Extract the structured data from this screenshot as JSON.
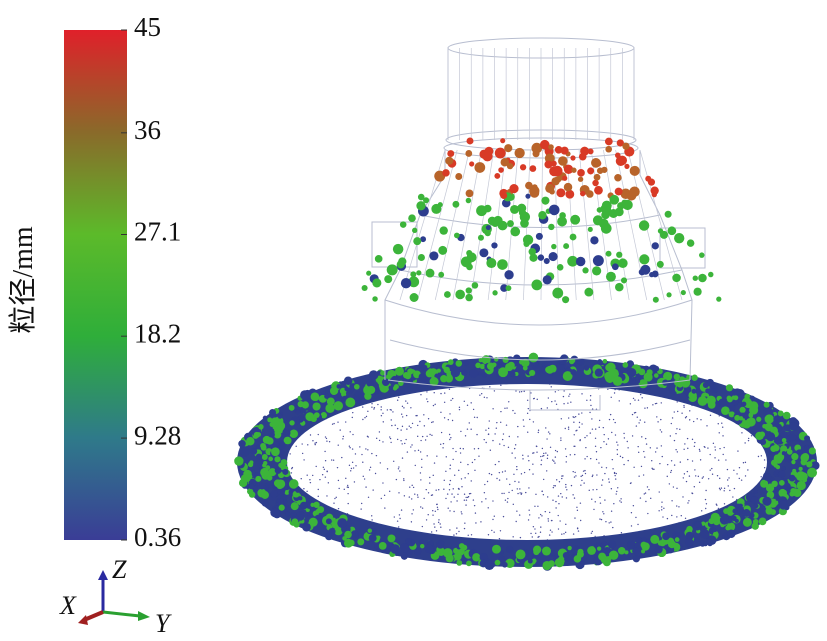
{
  "colorbar": {
    "label": "粒径/mm",
    "range": [
      0.36,
      45
    ],
    "ticks": [
      0.36,
      9.28,
      18.2,
      27.1,
      36,
      45
    ],
    "colors": [
      "#3a3d96",
      "#2f7a8a",
      "#2fae3a",
      "#5cba2a",
      "#8a6a2a",
      "#e0202a"
    ]
  },
  "axes": {
    "x": "X",
    "y": "Y",
    "z": "Z"
  }
}
